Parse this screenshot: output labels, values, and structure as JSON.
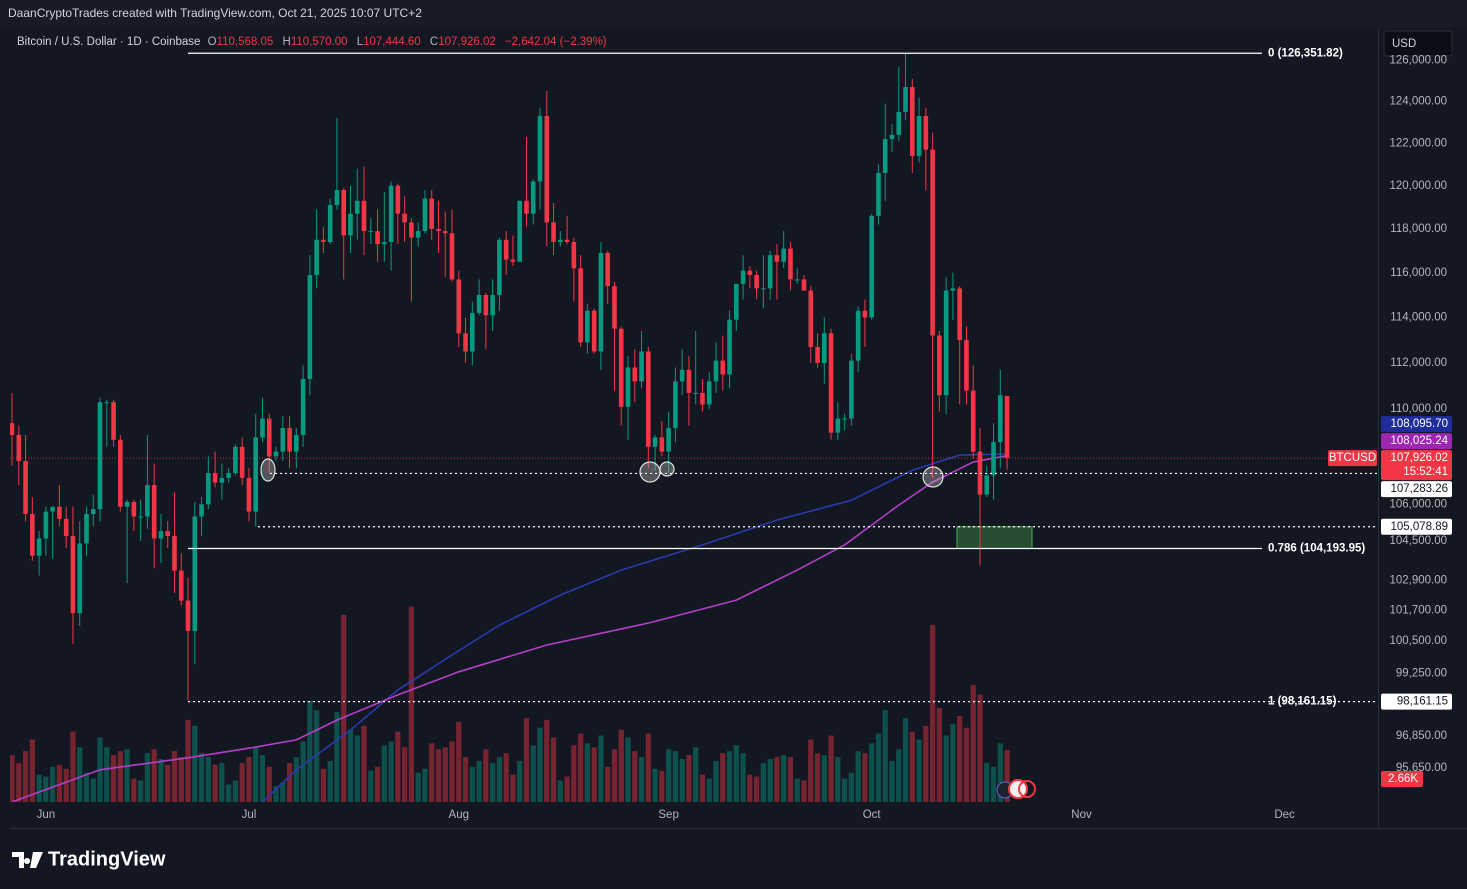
{
  "topbar": "DaanCryptoTrades created with TradingView.com, Oct 21, 2025 10:07 UTC+2",
  "currency": "USD",
  "footer_logo": "TradingView",
  "chart_data": {
    "type": "candlestick",
    "title": "Bitcoin / U.S. Dollar · 1D · Coinbase",
    "ohlc_legend": [
      {
        "key": "O",
        "value": "110,568.05"
      },
      {
        "key": "H",
        "value": "110,570.00"
      },
      {
        "key": "L",
        "value": "107,444.60"
      },
      {
        "key": "C",
        "value": "107,926.02"
      }
    ],
    "change": "−2,642.04 (−2.39%)",
    "up_color": "#089981",
    "down_color": "#f23645",
    "xlim": [
      -0.3,
      201.8
    ],
    "xticks": [
      {
        "value": 5,
        "label": "Jun"
      },
      {
        "value": 35,
        "label": "Jul"
      },
      {
        "value": 66,
        "label": "Aug"
      },
      {
        "value": 97,
        "label": "Sep"
      },
      {
        "value": 127,
        "label": "Oct"
      },
      {
        "value": 158,
        "label": "Nov"
      },
      {
        "value": 188,
        "label": "Dec"
      }
    ],
    "ylim": [
      94400,
      127600
    ],
    "log_scale": true,
    "grid": false,
    "yticks": [
      {
        "value": 126000,
        "label": "126,000.00"
      },
      {
        "value": 124000,
        "label": "124,000.00"
      },
      {
        "value": 122000,
        "label": "122,000.00"
      },
      {
        "value": 120000,
        "label": "120,000.00"
      },
      {
        "value": 118000,
        "label": "118,000.00"
      },
      {
        "value": 116000,
        "label": "116,000.00"
      },
      {
        "value": 114000,
        "label": "114,000.00"
      },
      {
        "value": 112000,
        "label": "112,000.00"
      },
      {
        "value": 110000,
        "label": "110,000.00"
      },
      {
        "value": 106000,
        "label": "106,000.00"
      },
      {
        "value": 104500,
        "label": "104,500.00"
      },
      {
        "value": 102900,
        "label": "102,900.00"
      },
      {
        "value": 101700,
        "label": "101,700.00"
      },
      {
        "value": 100500,
        "label": "100,500.00"
      },
      {
        "value": 99250,
        "label": "99,250.00"
      },
      {
        "value": 96850,
        "label": "96,850.00"
      },
      {
        "value": 95650,
        "label": "95,650.00"
      }
    ],
    "ohlc": [
      [
        109400,
        110700,
        107600,
        108900
      ],
      [
        108900,
        109300,
        106800,
        107800
      ],
      [
        107800,
        108900,
        105300,
        105600
      ],
      [
        105600,
        106300,
        103700,
        103900
      ],
      [
        103900,
        104900,
        103100,
        104600
      ],
      [
        104600,
        105900,
        103900,
        105700
      ],
      [
        105700,
        105900,
        103800,
        105900
      ],
      [
        105900,
        106800,
        105100,
        105400
      ],
      [
        105400,
        105900,
        104200,
        104700
      ],
      [
        104700,
        105900,
        100400,
        101600
      ],
      [
        101600,
        105300,
        101100,
        104400
      ],
      [
        104400,
        105900,
        103900,
        105600
      ],
      [
        105600,
        106400,
        105100,
        105800
      ],
      [
        105800,
        110500,
        105300,
        110300
      ],
      [
        110300,
        110400,
        108400,
        110300
      ],
      [
        110300,
        110400,
        108400,
        108700
      ],
      [
        108700,
        108900,
        105700,
        105900
      ],
      [
        105900,
        106200,
        102800,
        106100
      ],
      [
        106100,
        106200,
        104900,
        105500
      ],
      [
        105500,
        106200,
        104500,
        105500
      ],
      [
        105500,
        108900,
        105000,
        106800
      ],
      [
        106800,
        107700,
        103400,
        104600
      ],
      [
        104600,
        105600,
        103600,
        104900
      ],
      [
        104900,
        105300,
        104200,
        104700
      ],
      [
        104700,
        106500,
        102400,
        103300
      ],
      [
        103300,
        104000,
        101900,
        102100
      ],
      [
        102100,
        103000,
        98200,
        100900
      ],
      [
        100900,
        106100,
        99600,
        105500
      ],
      [
        105500,
        106300,
        104700,
        106000
      ],
      [
        106000,
        108000,
        105800,
        107300
      ],
      [
        107300,
        108200,
        106700,
        106900
      ],
      [
        106900,
        107700,
        106200,
        107100
      ],
      [
        107100,
        107500,
        106900,
        107300
      ],
      [
        107300,
        108500,
        107200,
        108400
      ],
      [
        108400,
        108800,
        106800,
        107100
      ],
      [
        107100,
        107500,
        105300,
        105700
      ],
      [
        105700,
        109800,
        105100,
        108800
      ],
      [
        108800,
        110500,
        108600,
        109600
      ],
      [
        109600,
        109800,
        107300,
        108000
      ],
      [
        108000,
        108400,
        107800,
        108200
      ],
      [
        108200,
        109700,
        107800,
        109200
      ],
      [
        109200,
        109700,
        107500,
        108200
      ],
      [
        108200,
        109200,
        107500,
        108900
      ],
      [
        108900,
        111900,
        108400,
        111300
      ],
      [
        111300,
        116800,
        110600,
        115900
      ],
      [
        115900,
        118900,
        115300,
        117500
      ],
      [
        117500,
        118100,
        116900,
        117400
      ],
      [
        117400,
        119400,
        117300,
        119100
      ],
      [
        119100,
        123200,
        118900,
        119800
      ],
      [
        119800,
        119900,
        115700,
        117700
      ],
      [
        117700,
        120000,
        116900,
        118700
      ],
      [
        118700,
        120800,
        117500,
        119300
      ],
      [
        119300,
        120900,
        116800,
        117900
      ],
      [
        117900,
        118500,
        117300,
        117900
      ],
      [
        117900,
        118900,
        116500,
        117300
      ],
      [
        117300,
        119700,
        116500,
        117400
      ],
      [
        117400,
        120200,
        116100,
        120000
      ],
      [
        120000,
        120100,
        117300,
        118700
      ],
      [
        118700,
        119500,
        117400,
        118300
      ],
      [
        118300,
        118500,
        114700,
        117600
      ],
      [
        117600,
        118300,
        117200,
        117900
      ],
      [
        117900,
        119800,
        117800,
        119400
      ],
      [
        119400,
        119800,
        117500,
        118000
      ],
      [
        118000,
        119300,
        116900,
        117900
      ],
      [
        117900,
        118800,
        115800,
        117800
      ],
      [
        117800,
        118900,
        115600,
        115700
      ],
      [
        115700,
        116100,
        112700,
        113300
      ],
      [
        113300,
        114000,
        112000,
        112500
      ],
      [
        112500,
        114700,
        111900,
        114200
      ],
      [
        114200,
        115700,
        114100,
        115000
      ],
      [
        115000,
        115100,
        112600,
        114100
      ],
      [
        114100,
        115700,
        113400,
        115000
      ],
      [
        115000,
        117600,
        114300,
        117500
      ],
      [
        117500,
        117900,
        115900,
        116600
      ],
      [
        116600,
        117700,
        116300,
        116500
      ],
      [
        116500,
        119300,
        116500,
        119300
      ],
      [
        119300,
        122300,
        118100,
        118700
      ],
      [
        118700,
        120300,
        118200,
        120200
      ],
      [
        120200,
        123700,
        118900,
        123300
      ],
      [
        123300,
        124500,
        117200,
        118300
      ],
      [
        118300,
        119200,
        116800,
        117400
      ],
      [
        117400,
        117900,
        117200,
        117500
      ],
      [
        117500,
        118600,
        117300,
        117400
      ],
      [
        117400,
        117600,
        114700,
        116200
      ],
      [
        116200,
        116800,
        112700,
        112900
      ],
      [
        112900,
        114600,
        112400,
        114300
      ],
      [
        114300,
        114400,
        112400,
        112500
      ],
      [
        112500,
        117400,
        111700,
        116900
      ],
      [
        116900,
        117000,
        114600,
        115400
      ],
      [
        115400,
        115600,
        110800,
        113500
      ],
      [
        113500,
        113600,
        109300,
        110100
      ],
      [
        110100,
        112300,
        108700,
        111800
      ],
      [
        111800,
        112600,
        110300,
        111200
      ],
      [
        111200,
        113400,
        110900,
        112500
      ],
      [
        112500,
        112700,
        107500,
        108400
      ],
      [
        108400,
        108900,
        107400,
        108800
      ],
      [
        108800,
        109500,
        108000,
        108200
      ],
      [
        108200,
        109900,
        107300,
        109200
      ],
      [
        109200,
        111800,
        108600,
        111200
      ],
      [
        111200,
        112600,
        110600,
        111700
      ],
      [
        111700,
        112300,
        109300,
        110700
      ],
      [
        110700,
        113400,
        110200,
        110700
      ],
      [
        110700,
        111300,
        109900,
        110200
      ],
      [
        110200,
        111600,
        110000,
        111200
      ],
      [
        111200,
        112900,
        110700,
        112100
      ],
      [
        112100,
        113200,
        110800,
        111500
      ],
      [
        111500,
        114300,
        110900,
        113900
      ],
      [
        113900,
        115500,
        113400,
        115500
      ],
      [
        115500,
        116800,
        114800,
        116100
      ],
      [
        116100,
        116300,
        115300,
        115900
      ],
      [
        115900,
        116100,
        114800,
        115300
      ],
      [
        115300,
        116800,
        114400,
        115300
      ],
      [
        115300,
        117000,
        114800,
        116800
      ],
      [
        116800,
        117300,
        114800,
        116500
      ],
      [
        116500,
        117900,
        116200,
        117100
      ],
      [
        117100,
        117400,
        115200,
        115700
      ],
      [
        115700,
        116200,
        115500,
        115700
      ],
      [
        115700,
        115900,
        115200,
        115200
      ],
      [
        115200,
        115400,
        112000,
        112700
      ],
      [
        112700,
        113300,
        111800,
        112000
      ],
      [
        112000,
        114000,
        111100,
        113300
      ],
      [
        113300,
        113500,
        108700,
        109000
      ],
      [
        109000,
        110300,
        108700,
        109600
      ],
      [
        109600,
        109800,
        109100,
        109600
      ],
      [
        109600,
        112400,
        109300,
        112100
      ],
      [
        112100,
        114500,
        111600,
        114300
      ],
      [
        114300,
        114800,
        112700,
        114000
      ],
      [
        114000,
        118700,
        113900,
        118600
      ],
      [
        118600,
        121000,
        118200,
        120600
      ],
      [
        120600,
        123900,
        119300,
        122200
      ],
      [
        122200,
        122900,
        121600,
        122400
      ],
      [
        122400,
        125700,
        122100,
        123500
      ],
      [
        123500,
        126350,
        123100,
        124700
      ],
      [
        124700,
        125100,
        120600,
        121400
      ],
      [
        121400,
        124200,
        121100,
        123300
      ],
      [
        123300,
        123700,
        119800,
        121700
      ],
      [
        121700,
        122500,
        107100,
        113200
      ],
      [
        113200,
        113400,
        109900,
        110600
      ],
      [
        110600,
        115800,
        109800,
        115200
      ],
      [
        115200,
        116000,
        113900,
        115300
      ],
      [
        115300,
        115400,
        110200,
        113000
      ],
      [
        113000,
        113600,
        110200,
        110800
      ],
      [
        110800,
        111900,
        107900,
        108200
      ],
      [
        108200,
        109200,
        103500,
        106400
      ],
      [
        106400,
        107600,
        106300,
        107200
      ],
      [
        107200,
        109400,
        106200,
        108600
      ],
      [
        108600,
        111700,
        107500,
        110600
      ],
      [
        110568.05,
        110570.0,
        107444.6,
        107926.02
      ]
    ],
    "close_label": "107,926.02",
    "countdown": "15:52:41",
    "symbol_tag": "BTCUSD",
    "volume": {
      "ylim": [
        0,
        39600
      ],
      "last_label": "2.66K",
      "values": [
        2400,
        2000,
        2600,
        3200,
        1400,
        1300,
        1800,
        1900,
        1700,
        3600,
        2800,
        1500,
        1200,
        3300,
        2800,
        2400,
        2600,
        2700,
        1200,
        1100,
        2500,
        2700,
        2200,
        1900,
        2600,
        2300,
        4200,
        3900,
        2500,
        2300,
        1900,
        2000,
        900,
        1100,
        2000,
        2300,
        2800,
        2400,
        1800,
        800,
        1000,
        2000,
        2300,
        3100,
        5170,
        4700,
        1700,
        2100,
        4600,
        9570,
        3700,
        3400,
        3900,
        1600,
        1800,
        2900,
        3100,
        3600,
        2800,
        9990,
        1500,
        1700,
        3000,
        2700,
        2800,
        3100,
        4100,
        2300,
        1800,
        2100,
        2700,
        2000,
        2300,
        2500,
        1400,
        2100,
        4300,
        2900,
        3800,
        4200,
        3300,
        1100,
        1300,
        2900,
        3500,
        3000,
        2800,
        3400,
        1800,
        2700,
        3700,
        3300,
        2600,
        2300,
        3500,
        1700,
        1600,
        2700,
        2600,
        2200,
        2400,
        2800,
        1400,
        1200,
        2100,
        2500,
        2600,
        2900,
        2500,
        1400,
        1300,
        2000,
        2200,
        2300,
        2400,
        2300,
        1200,
        1100,
        3200,
        2500,
        2400,
        3400,
        2300,
        1200,
        1500,
        2600,
        2500,
        3000,
        3500,
        4700,
        2100,
        2700,
        4300,
        3600,
        3200,
        3900,
        9060,
        4800,
        3400,
        4000,
        4400,
        3800,
        5990,
        5500,
        2000,
        1800,
        3000,
        2660
      ]
    },
    "lines": [
      {
        "color": "#2a3aae",
        "tag_color": "#1f2c9c",
        "axis_label": "108,095.70",
        "x": [
          37,
          42,
          50,
          57,
          65,
          72,
          81,
          90,
          102,
          113,
          124,
          133,
          140,
          147
        ],
        "values": [
          94400,
          95590,
          97080,
          98610,
          99960,
          101130,
          102320,
          103320,
          104340,
          105350,
          106170,
          107420,
          108050,
          108095.7
        ]
      },
      {
        "color": "#b53ec9",
        "tag_color": "#9c27b0",
        "axis_label": "108,025.24",
        "x": [
          0,
          13,
          26,
          35,
          42,
          48,
          57,
          66,
          79,
          94,
          107,
          116,
          123,
          131,
          136,
          142,
          147
        ],
        "values": [
          94400,
          95590,
          96040,
          96400,
          96710,
          97460,
          98420,
          99310,
          100350,
          101210,
          102120,
          103320,
          104340,
          105970,
          106920,
          107760,
          108025.24
        ]
      }
    ],
    "levels": [
      {
        "value": 126351.82,
        "label": "0 (126,351.82)",
        "style": "solid"
      },
      {
        "value": 104193.95,
        "label": "0.786 (104,193.95)",
        "style": "solid"
      },
      {
        "value": 98161.15,
        "label": "1 (98,161.15)",
        "style": "dotted",
        "axis_label": "98,161.15"
      },
      {
        "value": 107283.26,
        "style": "dotted",
        "axis_label": "107,283.26"
      },
      {
        "value": 105078.89,
        "style": "dotted",
        "axis_label": "105,078.89"
      }
    ]
  }
}
